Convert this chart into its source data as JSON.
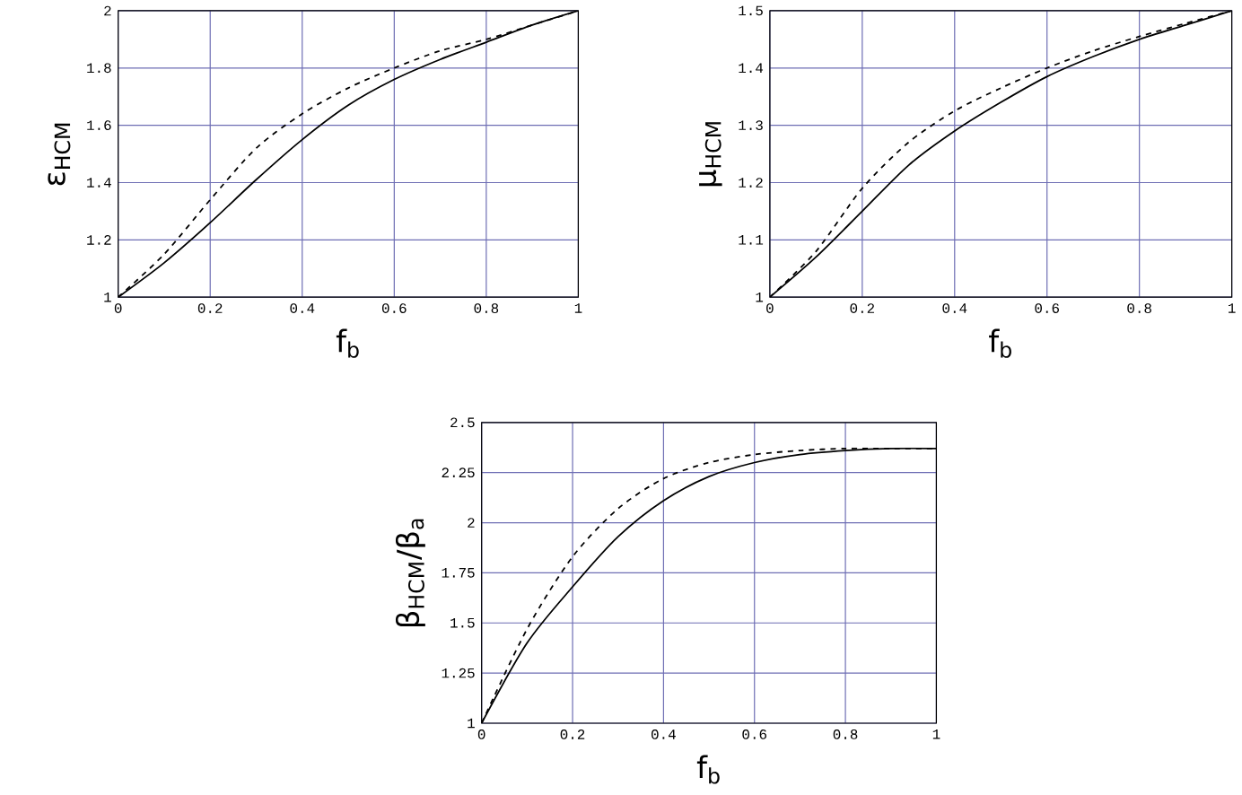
{
  "chart_data": [
    {
      "type": "line",
      "xlabel": "f$_{b}$",
      "ylabel": "ε$_{HCM}$",
      "x": [
        0,
        0.1,
        0.2,
        0.3,
        0.4,
        0.5,
        0.6,
        0.7,
        0.8,
        0.9,
        1
      ],
      "xlim": [
        0,
        1
      ],
      "ylim": [
        1,
        2
      ],
      "xticks": [
        0,
        0.2,
        0.4,
        0.6,
        0.8,
        1
      ],
      "yticks": [
        1,
        1.2,
        1.4,
        1.6,
        1.8,
        2
      ],
      "grid": true,
      "series": [
        {
          "color": "#000000",
          "line_style": "solid",
          "values": [
            1,
            1.12,
            1.26,
            1.41,
            1.55,
            1.67,
            1.76,
            1.83,
            1.89,
            1.95,
            2
          ]
        },
        {
          "color": "#000000",
          "line_style": "dashed",
          "values": [
            1,
            1.15,
            1.34,
            1.52,
            1.64,
            1.73,
            1.8,
            1.86,
            1.9,
            1.95,
            2
          ]
        }
      ]
    },
    {
      "type": "line",
      "xlabel": "f$_{b}$",
      "ylabel": "μ$_{HCM}$",
      "x": [
        0,
        0.1,
        0.2,
        0.3,
        0.4,
        0.5,
        0.6,
        0.7,
        0.8,
        0.9,
        1
      ],
      "xlim": [
        0,
        1
      ],
      "ylim": [
        1,
        1.5
      ],
      "xticks": [
        0,
        0.2,
        0.4,
        0.6,
        0.8,
        1
      ],
      "yticks": [
        1,
        1.1,
        1.2,
        1.3,
        1.4,
        1.5
      ],
      "grid": true,
      "series": [
        {
          "color": "#000000",
          "line_style": "solid",
          "values": [
            1,
            1.07,
            1.15,
            1.23,
            1.29,
            1.34,
            1.385,
            1.42,
            1.45,
            1.475,
            1.5
          ]
        },
        {
          "color": "#000000",
          "line_style": "dashed",
          "values": [
            1,
            1.08,
            1.19,
            1.27,
            1.325,
            1.365,
            1.4,
            1.43,
            1.455,
            1.478,
            1.5
          ]
        }
      ]
    },
    {
      "type": "line",
      "xlabel": "f$_{b}$",
      "ylabel": "β$_{HCM}$/β$_{a}$",
      "x": [
        0,
        0.1,
        0.2,
        0.3,
        0.4,
        0.5,
        0.6,
        0.7,
        0.8,
        0.9,
        1
      ],
      "xlim": [
        0,
        1
      ],
      "ylim": [
        1,
        2.5
      ],
      "xticks": [
        0,
        0.2,
        0.4,
        0.6,
        0.8,
        1
      ],
      "yticks": [
        1,
        1.25,
        1.5,
        1.75,
        2,
        2.25,
        2.5
      ],
      "grid": true,
      "series": [
        {
          "color": "#000000",
          "line_style": "solid",
          "values": [
            1,
            1.4,
            1.68,
            1.93,
            2.11,
            2.23,
            2.3,
            2.34,
            2.36,
            2.37,
            2.37
          ]
        },
        {
          "color": "#000000",
          "line_style": "dashed",
          "values": [
            1,
            1.47,
            1.83,
            2.07,
            2.22,
            2.3,
            2.34,
            2.36,
            2.37,
            2.37,
            2.37
          ]
        }
      ]
    }
  ]
}
